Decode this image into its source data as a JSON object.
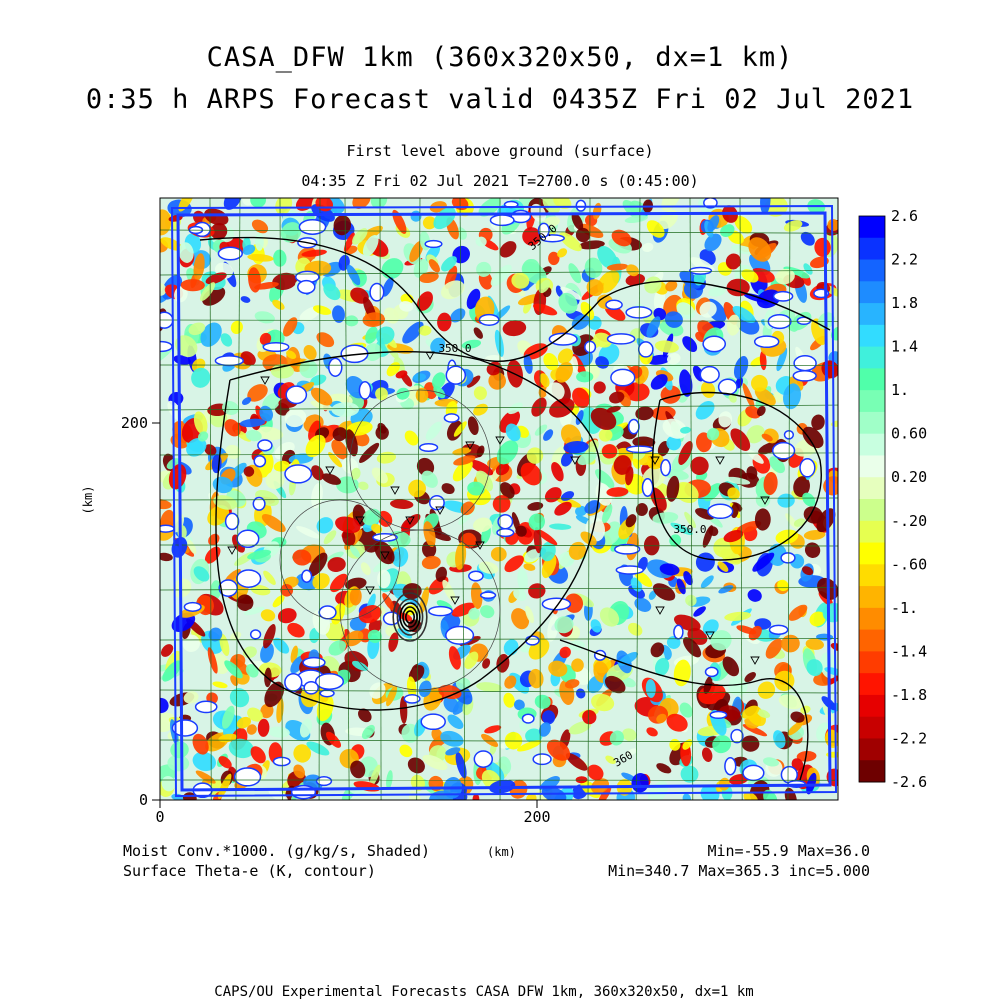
{
  "title_line1": "CASA_DFW 1km (360x320x50, dx=1 km)",
  "title_line2": "0:35 h ARPS Forecast valid 0435Z Fri 02 Jul 2021",
  "subtitle_line1": "First level above ground (surface)",
  "subtitle_line2": "04:35 Z Fri 02 Jul 2021   T=2700.0 s (0:45:00)",
  "footer": {
    "left_line1": "Moist Conv.*1000. (g/kg/s, Shaded)",
    "left_line2": "Surface Theta-e (K, contour)",
    "axis_unit": "(km)",
    "right_line1": "Min=-55.9 Max=36.0",
    "right_line2": "Min=340.7 Max=365.3 inc=5.000"
  },
  "credit": "CAPS/OU Experimental Forecasts  CASA DFW 1km, 360x320x50, dx=1 km",
  "chart_data": {
    "type": "heatmap",
    "x_axis": {
      "label": "(km)",
      "range": [
        0,
        360
      ],
      "ticks": [
        "0",
        "200"
      ]
    },
    "y_axis": {
      "label": "(km)",
      "range": [
        0,
        320
      ],
      "ticks": [
        "0",
        "200"
      ]
    },
    "shaded_field": "Moist Conv.*1000. (g/kg/s, Shaded)",
    "contour_field": "Surface Theta-e (K, contour)",
    "contour_labels": [
      "350.0",
      "350.0",
      "350.0",
      "360"
    ],
    "colorbar": {
      "labels": [
        "2.6",
        "2.2",
        "1.8",
        "1.4",
        "1.",
        "0.60",
        "0.20",
        "-.20",
        "-.60",
        "-1.",
        "-1.4",
        "-1.8",
        "-2.2",
        "-2.6"
      ],
      "colors": [
        "#0000ff",
        "#0a32ff",
        "#1464ff",
        "#1e8cff",
        "#28b4ff",
        "#32dcff",
        "#40f0dc",
        "#50ffaa",
        "#78ffb4",
        "#a0ffc8",
        "#c8ffe0",
        "#eaffea",
        "#e6ffbe",
        "#ccff8c",
        "#e6ff50",
        "#ffff00",
        "#ffdc00",
        "#ffb400",
        "#ff8c00",
        "#ff6400",
        "#ff3c00",
        "#ff1400",
        "#e60000",
        "#c80000",
        "#a00000",
        "#6e0000"
      ]
    },
    "field_range": {
      "min": -55.9,
      "max": 36.0
    },
    "contour_range": {
      "min": 340.7,
      "max": 365.3,
      "inc": 5.0
    }
  }
}
